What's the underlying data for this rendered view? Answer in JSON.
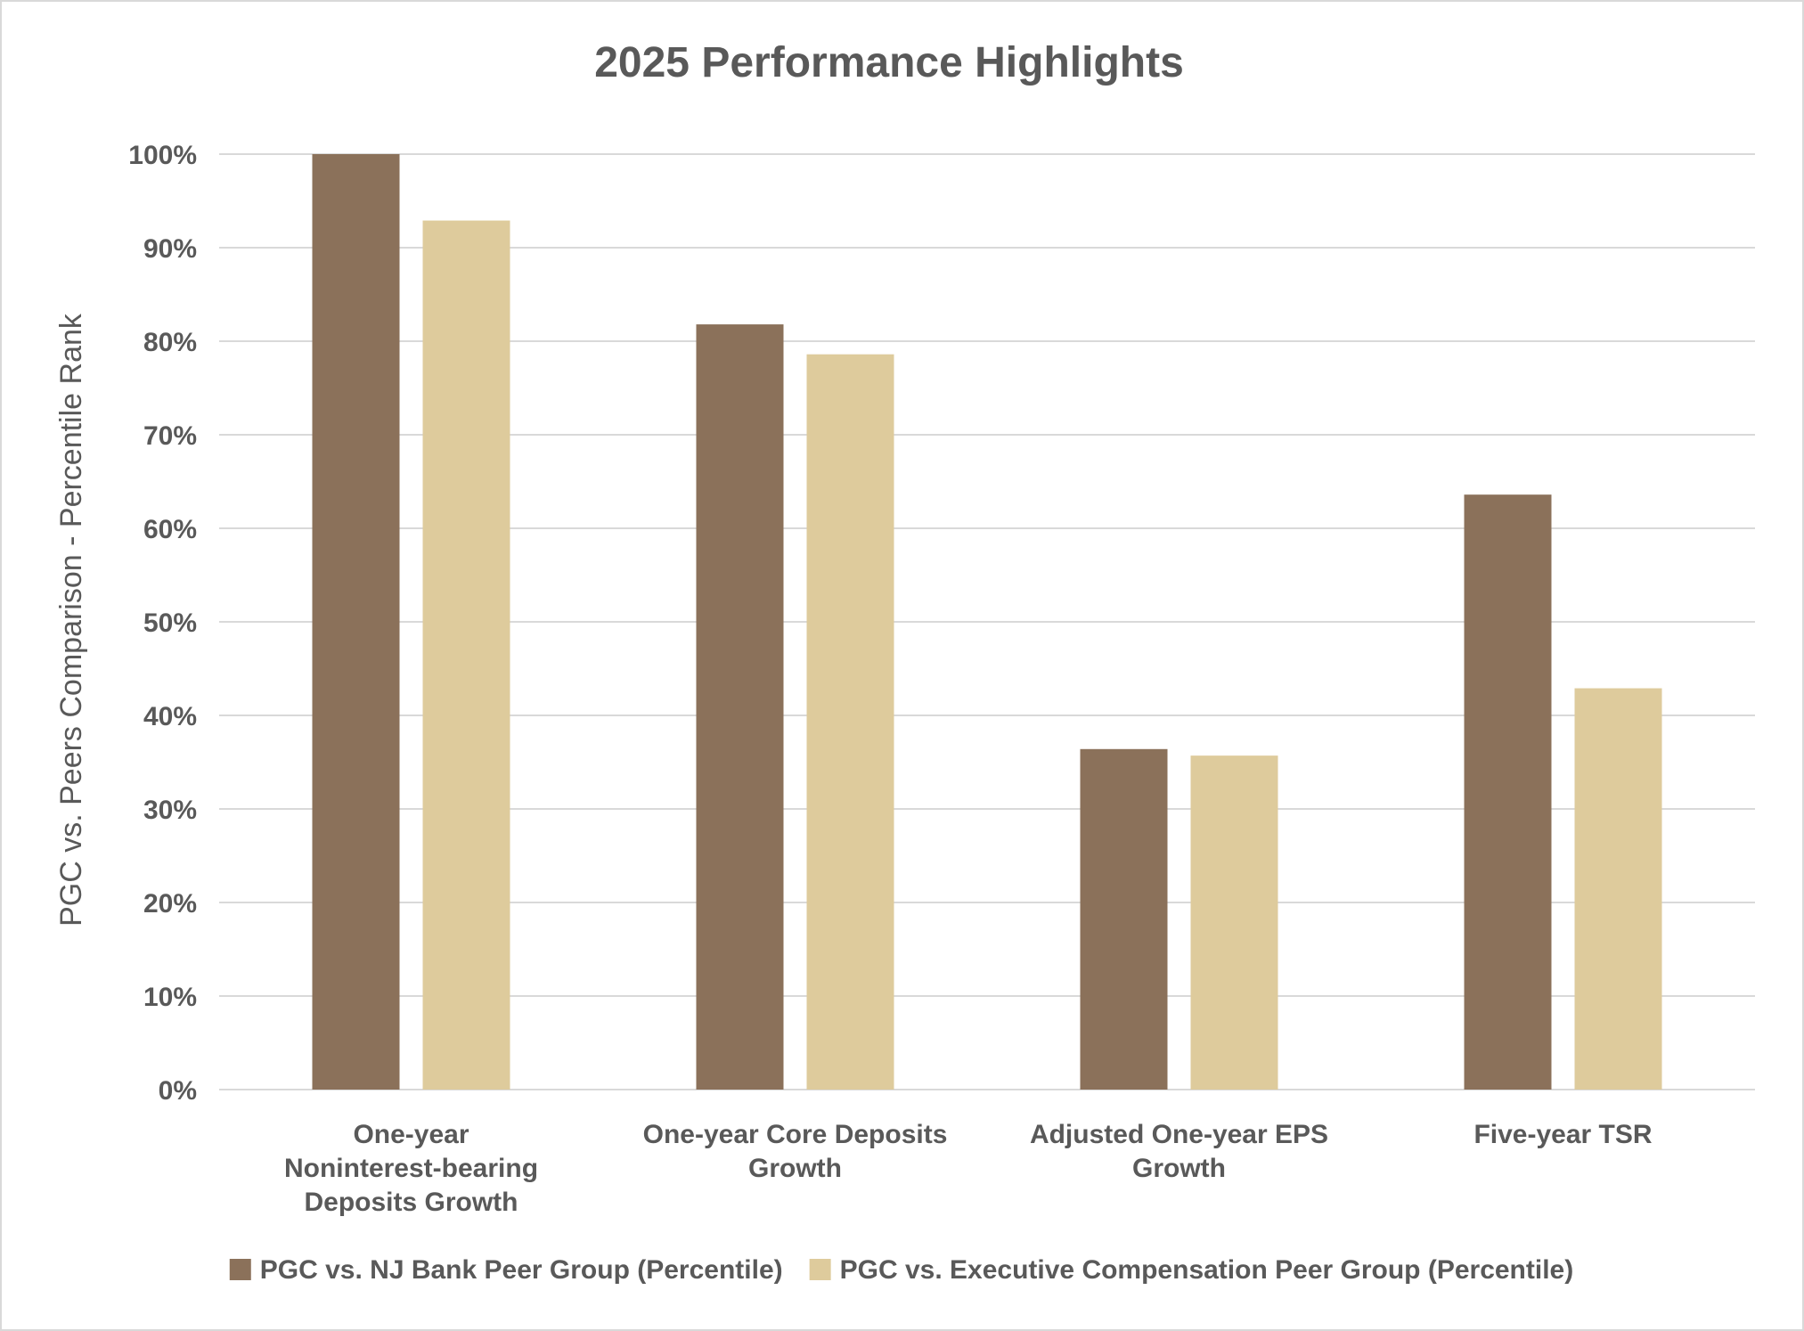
{
  "chart_data": {
    "type": "bar",
    "title": "2025 Performance Highlights",
    "xlabel": "",
    "ylabel": "PGC vs. Peers Comparison - Percentile Rank",
    "ylim": [
      0,
      100
    ],
    "yticks": [
      0,
      10,
      20,
      30,
      40,
      50,
      60,
      70,
      80,
      90,
      100
    ],
    "ytick_labels": [
      "0%",
      "10%",
      "20%",
      "30%",
      "40%",
      "50%",
      "60%",
      "70%",
      "80%",
      "90%",
      "100%"
    ],
    "categories": [
      [
        "One-year",
        "Noninterest-bearing",
        "Deposits Growth"
      ],
      [
        "One-year Core Deposits",
        "Growth"
      ],
      [
        "Adjusted One-year EPS",
        "Growth"
      ],
      [
        "Five-year TSR"
      ]
    ],
    "series": [
      {
        "name": "PGC vs. NJ Bank Peer Group (Percentile)",
        "color": "#8b715a",
        "values": [
          100,
          81.8,
          36.4,
          63.6
        ]
      },
      {
        "name": "PGC vs. Executive Compensation Peer Group (Percentile)",
        "color": "#decb9c",
        "values": [
          92.9,
          78.6,
          35.7,
          42.9
        ]
      }
    ],
    "grid": true,
    "legend_position": "bottom"
  }
}
